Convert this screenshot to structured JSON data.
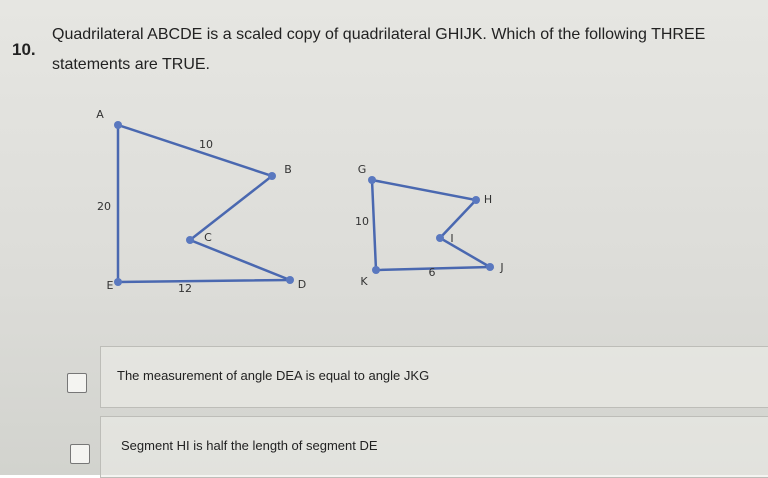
{
  "question": {
    "number": "10.",
    "text": "Quadrilateral ABCDE is a scaled copy of quadrilateral GHIJK. Which of the following THREE statements are TRUE."
  },
  "figures": [
    {
      "vertices": [
        "A",
        "B",
        "C",
        "D",
        "E"
      ],
      "side_labels": [
        10,
        20,
        12
      ]
    },
    {
      "vertices": [
        "G",
        "H",
        "I",
        "J",
        "K"
      ],
      "side_labels": [
        10,
        6
      ]
    }
  ],
  "options": [
    "The measurement of angle DEA is equal to angle JKG",
    "Segment HI is half the length of segment DE"
  ]
}
